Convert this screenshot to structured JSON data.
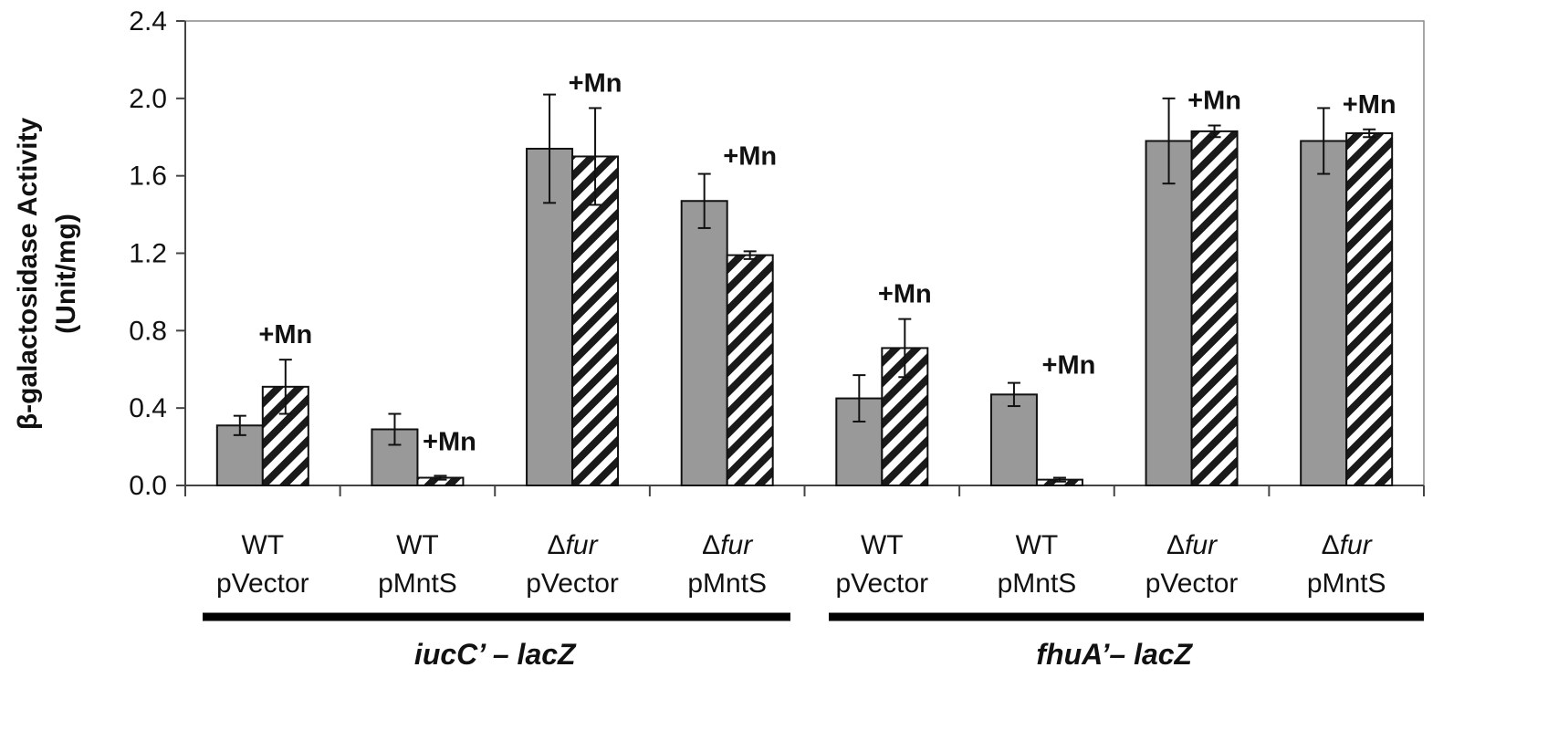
{
  "chart_data": {
    "type": "bar",
    "ylabel": "β-galactosidase Activity",
    "ylabel_unit": "(Unit/mg)",
    "ylim": [
      0,
      2.4
    ],
    "yticks": [
      "0.0",
      "0.4",
      "0.8",
      "1.2",
      "1.6",
      "2.0",
      "2.4"
    ],
    "grid": false,
    "categories": [
      {
        "line1": "WT",
        "line1_prefix": "",
        "line1_italic": "",
        "line2": "pVector"
      },
      {
        "line1": "WT",
        "line1_prefix": "",
        "line1_italic": "",
        "line2": "pMntS"
      },
      {
        "line1": "",
        "line1_prefix": "Δ",
        "line1_italic": "fur",
        "line2": "pVector"
      },
      {
        "line1": "",
        "line1_prefix": "Δ",
        "line1_italic": "fur",
        "line2": "pMntS"
      },
      {
        "line1": "WT",
        "line1_prefix": "",
        "line1_italic": "",
        "line2": "pVector"
      },
      {
        "line1": "WT",
        "line1_prefix": "",
        "line1_italic": "",
        "line2": "pMntS"
      },
      {
        "line1": "",
        "line1_prefix": "Δ",
        "line1_italic": "fur",
        "line2": "pVector"
      },
      {
        "line1": "",
        "line1_prefix": "Δ",
        "line1_italic": "fur",
        "line2": "pMntS"
      }
    ],
    "series": [
      {
        "style": "solid",
        "color": "#999999",
        "values": [
          0.31,
          0.29,
          1.74,
          1.47,
          0.45,
          0.47,
          1.78,
          1.78
        ],
        "errors": [
          0.05,
          0.08,
          0.28,
          0.14,
          0.12,
          0.06,
          0.22,
          0.17
        ]
      },
      {
        "style": "hatched",
        "color": "#1a1a1a",
        "values": [
          0.51,
          0.04,
          1.7,
          1.19,
          0.71,
          0.03,
          1.83,
          1.82
        ],
        "errors": [
          0.14,
          0.01,
          0.25,
          0.02,
          0.15,
          0.01,
          0.03,
          0.02
        ]
      }
    ],
    "annotations": [
      "+Mn",
      "+Mn",
      "+Mn",
      "+Mn",
      "+Mn",
      "+Mn",
      "+Mn",
      "+Mn"
    ],
    "groups": [
      {
        "label": "iucC’ – lacZ",
        "categories": [
          0,
          1,
          2,
          3
        ]
      },
      {
        "label": "fhuA’– lacZ",
        "categories": [
          4,
          5,
          6,
          7
        ]
      }
    ]
  }
}
